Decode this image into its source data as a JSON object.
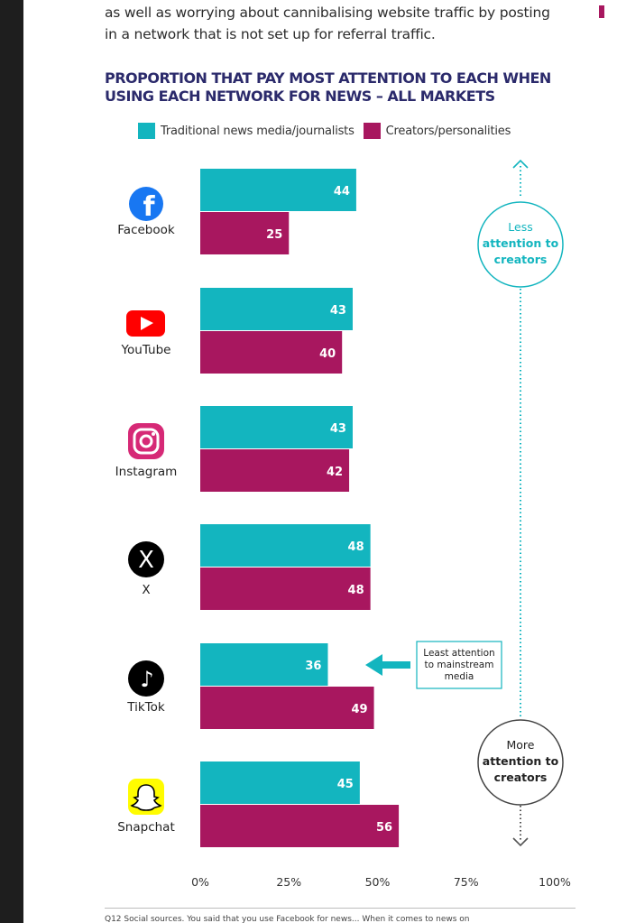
{
  "intro_lines": [
    "as well as worrying about cannibalising website traffic by posting",
    "in a network that is not set up for referral traffic."
  ],
  "chart_data": {
    "type": "bar",
    "orientation": "horizontal",
    "title_lines": [
      "PROPORTION THAT PAY MOST ATTENTION TO EACH WHEN",
      "USING EACH NETWORK FOR NEWS – ALL MARKETS"
    ],
    "categories": [
      "Facebook",
      "YouTube",
      "Instagram",
      "X",
      "TikTok",
      "Snapchat"
    ],
    "series": [
      {
        "name": "Traditional news media/journalists",
        "color": "#13b5bf",
        "values": [
          44,
          43,
          43,
          48,
          36,
          45
        ]
      },
      {
        "name": "Creators/personalities",
        "color": "#a8175f",
        "values": [
          25,
          40,
          42,
          48,
          49,
          56
        ]
      }
    ],
    "x_ticks": [
      "0%",
      "25%",
      "50%",
      "75%",
      "100%"
    ],
    "xlim": [
      0,
      100
    ],
    "grid": false,
    "legend_position": "top",
    "annotations": {
      "top_circle": [
        "Less",
        "attention to",
        "creators"
      ],
      "bottom_circle": [
        "More",
        "attention to",
        "creators"
      ],
      "callout": [
        "Least attention",
        "to mainstream",
        "media"
      ]
    },
    "icons": [
      "facebook-icon",
      "youtube-icon",
      "instagram-icon",
      "x-icon",
      "tiktok-icon",
      "snapchat-icon"
    ]
  },
  "footer_text": "Q12 Social sources. You said that you use Facebook for news... When it comes to news on"
}
